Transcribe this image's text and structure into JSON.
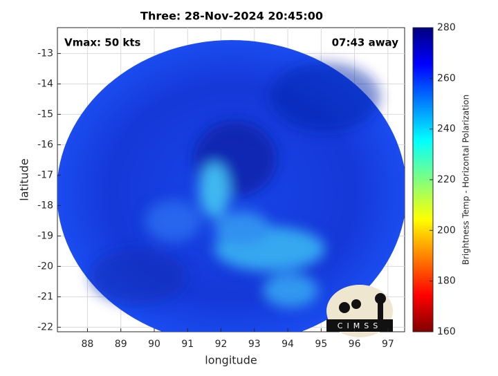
{
  "chart_data": {
    "type": "image",
    "title": "Three: 28-Nov-2024 20:45:00",
    "annotations": [
      "Vmax: 50 kts",
      "07:43 away"
    ],
    "x_label": "longitude",
    "y_label": "latitude",
    "xlim": [
      87.1,
      97.5
    ],
    "ylim": [
      -22.15,
      -12.15
    ],
    "xticks": [
      88,
      89,
      90,
      91,
      92,
      93,
      94,
      95,
      96,
      97
    ],
    "yticks": [
      -13,
      -14,
      -15,
      -16,
      -17,
      -18,
      -19,
      -20,
      -21,
      -22
    ],
    "grid": true,
    "colorbar": {
      "label": "Brightness Temp - Horizontal Polarization",
      "lim": [
        160,
        280
      ],
      "ticks": [
        160,
        180,
        200,
        220,
        240,
        260,
        280
      ]
    },
    "logo": "CIMSS"
  }
}
